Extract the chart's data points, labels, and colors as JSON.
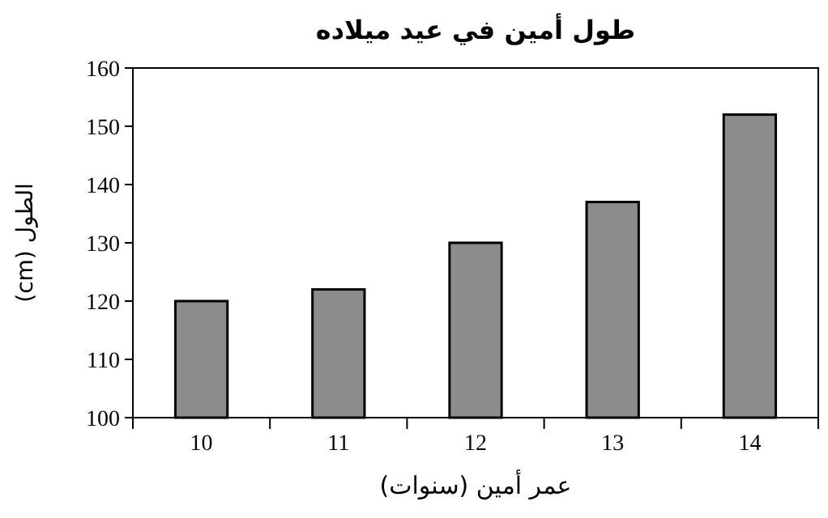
{
  "chart_data": {
    "type": "bar",
    "title": "طول أمين في عيد ميلاده",
    "xlabel": "عمر أمين (سنوات)",
    "ylabel": "الطول (cm)",
    "categories": [
      "10",
      "11",
      "12",
      "13",
      "14"
    ],
    "values": [
      120,
      122,
      130,
      137,
      152
    ],
    "color": "#8c8c8c",
    "ylim": [
      100,
      160
    ],
    "yticks": [
      100,
      110,
      120,
      130,
      140,
      150,
      160
    ]
  }
}
